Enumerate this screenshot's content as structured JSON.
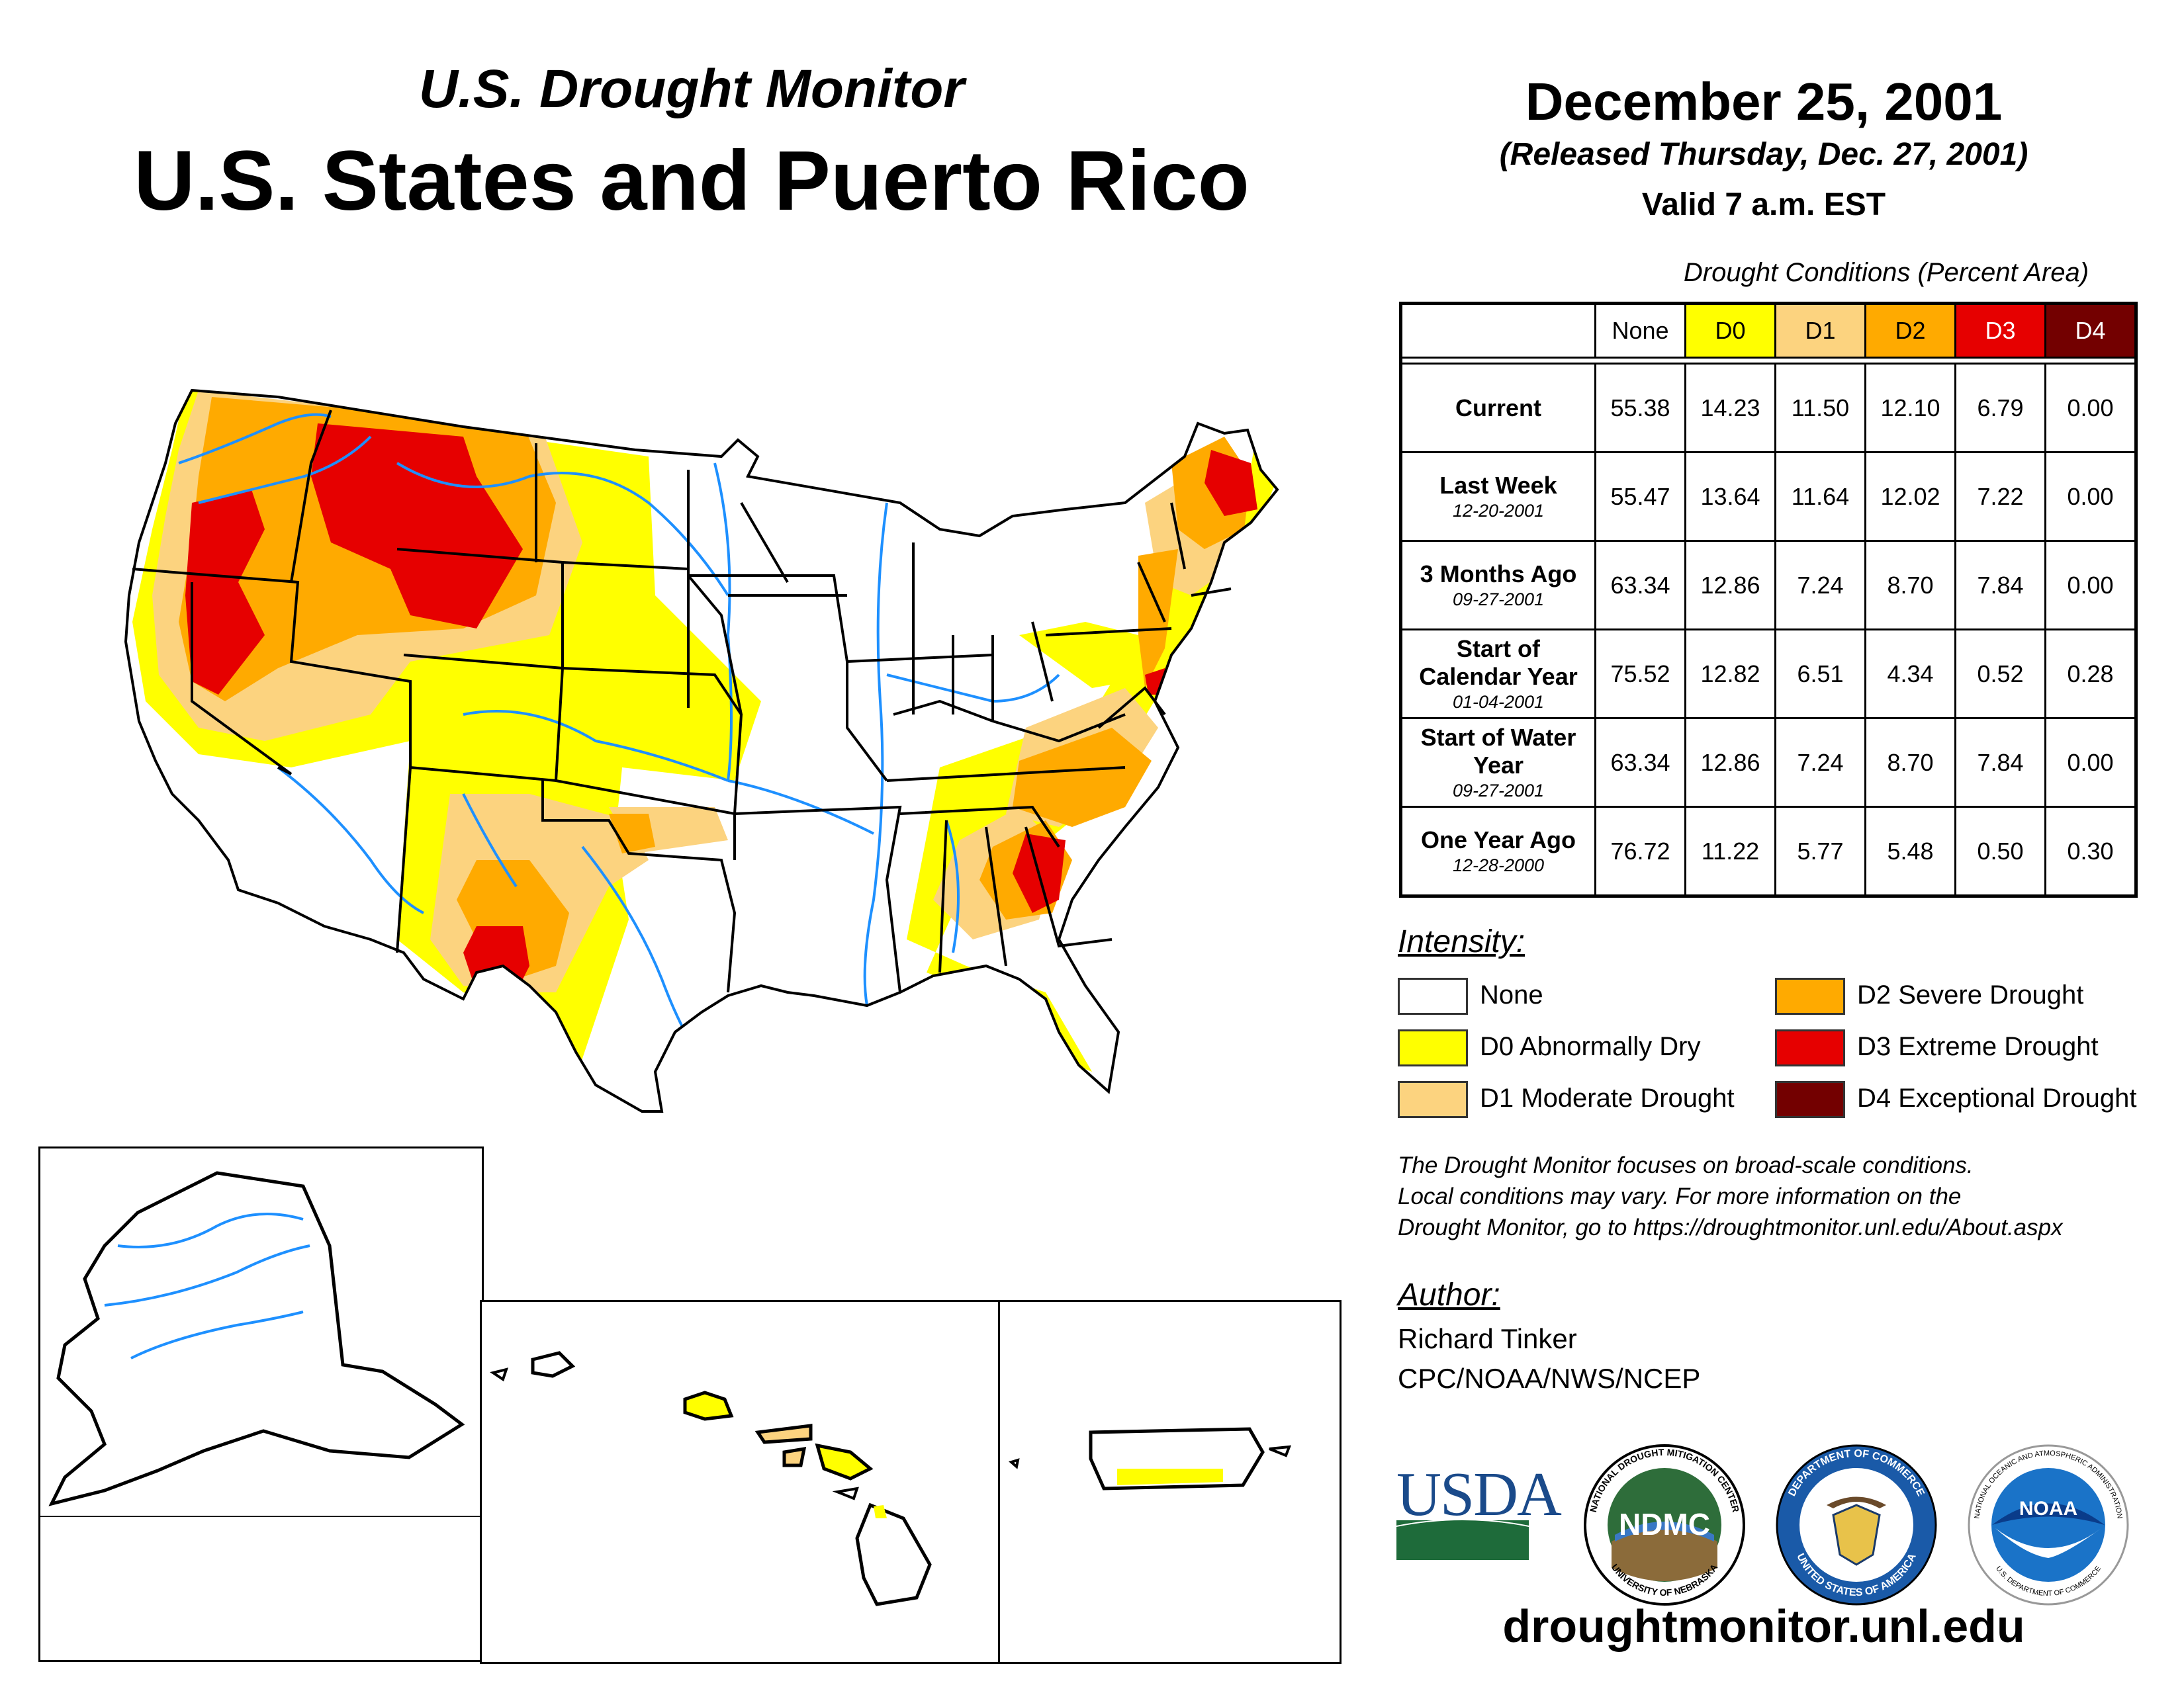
{
  "header": {
    "subtitle": "U.S. Drought Monitor",
    "title": "U.S. States and Puerto Rico",
    "date": "December 25, 2001",
    "released": "(Released Thursday, Dec. 27, 2001)",
    "valid": "Valid 7 a.m. EST"
  },
  "table": {
    "caption": "Drought Conditions (Percent Area)",
    "columns": [
      "None",
      "D0",
      "D1",
      "D2",
      "D3",
      "D4"
    ],
    "rows": [
      {
        "label": "Current",
        "date": "",
        "values": [
          "55.38",
          "14.23",
          "11.50",
          "12.10",
          "6.79",
          "0.00"
        ]
      },
      {
        "label": "Last Week",
        "date": "12-20-2001",
        "values": [
          "55.47",
          "13.64",
          "11.64",
          "12.02",
          "7.22",
          "0.00"
        ]
      },
      {
        "label": "3 Months Ago",
        "date": "09-27-2001",
        "values": [
          "63.34",
          "12.86",
          "7.24",
          "8.70",
          "7.84",
          "0.00"
        ]
      },
      {
        "label": "Start of Calendar Year",
        "date": "01-04-2001",
        "values": [
          "75.52",
          "12.82",
          "6.51",
          "4.34",
          "0.52",
          "0.28"
        ]
      },
      {
        "label": "Start of Water Year",
        "date": "09-27-2001",
        "values": [
          "63.34",
          "12.86",
          "7.24",
          "8.70",
          "7.84",
          "0.00"
        ]
      },
      {
        "label": "One Year Ago",
        "date": "12-28-2000",
        "values": [
          "76.72",
          "11.22",
          "5.77",
          "5.48",
          "0.50",
          "0.30"
        ]
      }
    ]
  },
  "legend": {
    "heading": "Intensity:",
    "items": [
      {
        "label": "None",
        "color": "#ffffff"
      },
      {
        "label": "D0 Abnormally Dry",
        "color": "#ffff00"
      },
      {
        "label": "D1 Moderate Drought",
        "color": "#fcd37f"
      },
      {
        "label": "D2 Severe Drought",
        "color": "#ffaa00"
      },
      {
        "label": "D3 Extreme Drought",
        "color": "#e60000"
      },
      {
        "label": "D4 Exceptional Drought",
        "color": "#730000"
      }
    ]
  },
  "note": {
    "line1": "The Drought Monitor focuses on broad-scale conditions.",
    "line2": "Local conditions may vary. For more information on the",
    "line3": "Drought Monitor, go to https://droughtmonitor.unl.edu/About.aspx"
  },
  "author": {
    "heading": "Author:",
    "name": "Richard Tinker",
    "org": "CPC/NOAA/NWS/NCEP"
  },
  "logos": {
    "usda": "USDA",
    "ndmc": "NDMC",
    "ndmc_top": "NATIONAL DROUGHT MITIGATION CENTER",
    "ndmc_bottom": "UNIVERSITY OF NEBRASKA",
    "commerce_top": "DEPARTMENT OF COMMERCE",
    "commerce_bottom": "UNITED STATES OF AMERICA",
    "noaa": "NOAA",
    "noaa_top": "NATIONAL OCEANIC AND ATMOSPHERIC ADMINISTRATION",
    "noaa_bottom": "U.S. DEPARTMENT OF COMMERCE"
  },
  "footer": {
    "url": "droughtmonitor.unl.edu"
  },
  "colors": {
    "none": "#ffffff",
    "d0": "#ffff00",
    "d1": "#fcd37f",
    "d2": "#ffaa00",
    "d3": "#e60000",
    "d4": "#730000",
    "water": "#1e90ff"
  }
}
